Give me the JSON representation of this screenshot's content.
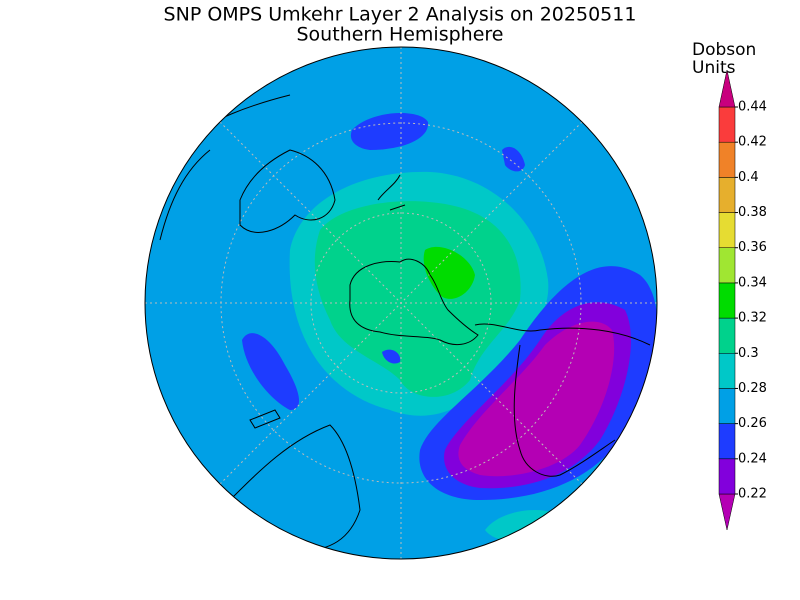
{
  "title": "SNP OMPS Umkehr Layer 2 Analysis on 20250511",
  "subtitle": "Southern Hemisphere",
  "colorbar": {
    "label_line1": "Dobson",
    "label_line2": "Units",
    "ticks": [
      0.22,
      0.24,
      0.26,
      0.28,
      0.3,
      0.32,
      0.34,
      0.36,
      0.38,
      0.4,
      0.42,
      0.44
    ],
    "colors": [
      "#b400b4",
      "#8200dc",
      "#1e3cff",
      "#00a0e6",
      "#00c8c8",
      "#00d28c",
      "#00dc00",
      "#a0e632",
      "#e6dc32",
      "#e6af2d",
      "#f08228",
      "#fa3c3c",
      "#c8007e"
    ]
  }
}
